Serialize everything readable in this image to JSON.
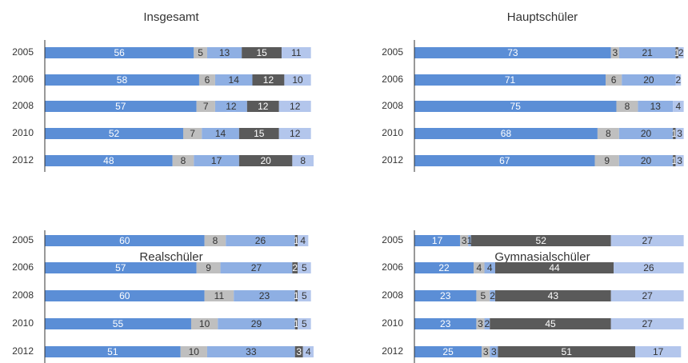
{
  "chart_data": [
    {
      "type": "stacked-barh",
      "title": "Insgesamt",
      "categories": [
        "2005",
        "2006",
        "2008",
        "2010",
        "2012"
      ],
      "xlim": [
        0,
        101
      ],
      "series": [
        {
          "color": "#5b8ed6",
          "values": [
            56,
            58,
            57,
            52,
            48
          ]
        },
        {
          "color": "#bfbfbf",
          "values": [
            5,
            6,
            7,
            7,
            8
          ]
        },
        {
          "color": "#8eafe3",
          "values": [
            13,
            14,
            12,
            14,
            17
          ]
        },
        {
          "color": "#5a5a5a",
          "values": [
            15,
            12,
            12,
            15,
            20
          ]
        },
        {
          "color": "#b3c6ec",
          "values": [
            11,
            10,
            12,
            12,
            8
          ]
        }
      ]
    },
    {
      "type": "stacked-barh",
      "title": "Hauptschüler",
      "categories": [
        "2005",
        "2006",
        "2008",
        "2010",
        "2012"
      ],
      "xlim": [
        0,
        101
      ],
      "series": [
        {
          "color": "#5b8ed6",
          "values": [
            73,
            71,
            75,
            68,
            67
          ]
        },
        {
          "color": "#bfbfbf",
          "values": [
            3,
            6,
            8,
            8,
            9
          ]
        },
        {
          "color": "#8eafe3",
          "values": [
            21,
            20,
            13,
            20,
            20
          ]
        },
        {
          "color": "#5a5a5a",
          "values": [
            1,
            0,
            0,
            1,
            1
          ]
        },
        {
          "color": "#b3c6ec",
          "values": [
            2,
            2,
            4,
            3,
            3
          ]
        }
      ]
    },
    {
      "type": "stacked-barh",
      "title": "Realschüler",
      "categories": [
        "2005",
        "2006",
        "2008",
        "2010",
        "2012"
      ],
      "xlim": [
        0,
        101
      ],
      "series": [
        {
          "color": "#5b8ed6",
          "values": [
            60,
            57,
            60,
            55,
            51
          ]
        },
        {
          "color": "#bfbfbf",
          "values": [
            8,
            9,
            11,
            10,
            10
          ]
        },
        {
          "color": "#8eafe3",
          "values": [
            26,
            27,
            23,
            29,
            33
          ]
        },
        {
          "color": "#5a5a5a",
          "values": [
            1,
            2,
            1,
            1,
            3
          ]
        },
        {
          "color": "#b3c6ec",
          "values": [
            4,
            5,
            5,
            5,
            4
          ]
        }
      ]
    },
    {
      "type": "stacked-barh",
      "title": "Gymnasialschüler",
      "categories": [
        "2005",
        "2006",
        "2008",
        "2010",
        "2012"
      ],
      "xlim": [
        0,
        101
      ],
      "series": [
        {
          "color": "#5b8ed6",
          "values": [
            17,
            22,
            23,
            23,
            25
          ]
        },
        {
          "color": "#bfbfbf",
          "values": [
            3,
            4,
            5,
            3,
            3
          ]
        },
        {
          "color": "#8eafe3",
          "values": [
            1,
            4,
            2,
            2,
            3
          ]
        },
        {
          "color": "#5a5a5a",
          "values": [
            52,
            44,
            43,
            45,
            51
          ]
        },
        {
          "color": "#b3c6ec",
          "values": [
            27,
            26,
            27,
            27,
            17
          ]
        }
      ]
    }
  ]
}
